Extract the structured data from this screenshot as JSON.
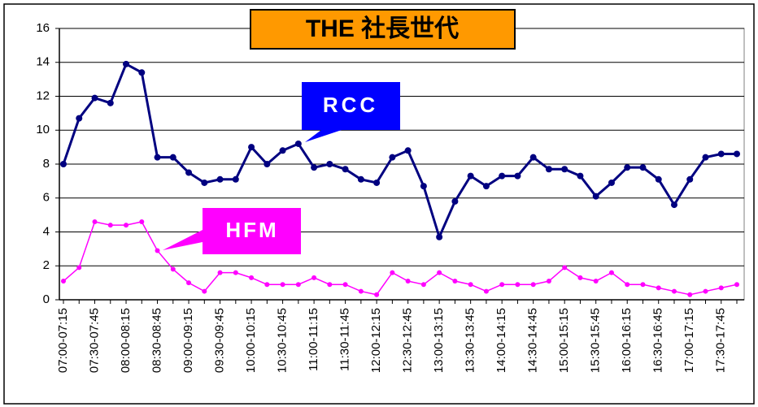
{
  "chart_data": {
    "type": "line",
    "title": "THE 社長世代",
    "categories": [
      "07:00-07:15",
      null,
      "07:30-07:45",
      null,
      "08:00-08:15",
      null,
      "08:30-08:45",
      null,
      "09:00-09:15",
      null,
      "09:30-09:45",
      null,
      "10:00-10:15",
      null,
      "10:30-10:45",
      null,
      "11:00-11:15",
      null,
      "11:30-11:45",
      null,
      "12:00-12:15",
      null,
      "12:30-12:45",
      null,
      "13:00-13:15",
      null,
      "13:30-13:45",
      null,
      "14:00-14:15",
      null,
      "14:30-14:45",
      null,
      "15:00-15:15",
      null,
      "15:30-15:45",
      null,
      "16:00-16:15",
      null,
      "16:30-16:45",
      null,
      "17:00-17:15",
      null,
      "17:30-17:45",
      null
    ],
    "series": [
      {
        "name": "RCC",
        "color": "#000080",
        "values": [
          8.0,
          10.7,
          11.9,
          11.6,
          13.9,
          13.4,
          8.4,
          8.4,
          7.5,
          6.9,
          7.1,
          7.1,
          9.0,
          8.0,
          8.8,
          9.2,
          7.8,
          8.0,
          7.7,
          7.1,
          6.9,
          8.4,
          8.8,
          6.7,
          3.7,
          5.8,
          7.3,
          6.7,
          7.3,
          7.3,
          8.4,
          7.7,
          7.7,
          7.3,
          6.1,
          6.9,
          7.8,
          7.8,
          7.1,
          5.6,
          7.1,
          8.4,
          8.6,
          8.6
        ]
      },
      {
        "name": "HFM",
        "color": "#ff00ff",
        "values": [
          1.1,
          1.9,
          4.6,
          4.4,
          4.4,
          4.6,
          2.9,
          1.8,
          1.0,
          0.5,
          1.6,
          1.6,
          1.3,
          0.9,
          0.9,
          0.9,
          1.3,
          0.9,
          0.9,
          0.5,
          0.3,
          1.6,
          1.1,
          0.9,
          1.6,
          1.1,
          0.9,
          0.5,
          0.9,
          0.9,
          0.9,
          1.1,
          1.9,
          1.3,
          1.1,
          1.6,
          0.9,
          0.9,
          0.7,
          0.5,
          0.3,
          0.5,
          0.7,
          0.9
        ]
      }
    ],
    "ylim": [
      0,
      16
    ],
    "yticks": [
      0,
      2,
      4,
      6,
      8,
      10,
      12,
      14,
      16
    ],
    "grid": true
  }
}
